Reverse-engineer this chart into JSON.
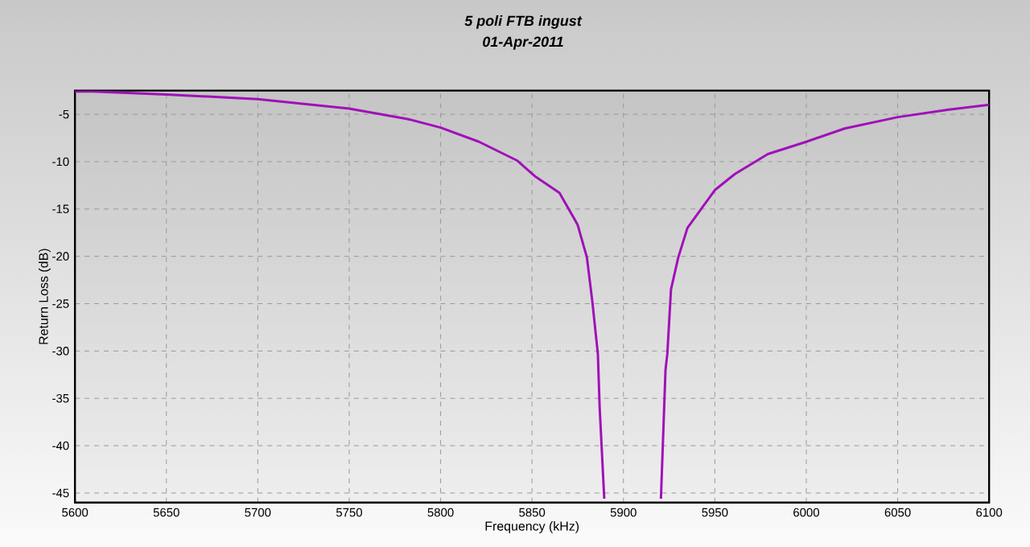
{
  "chart_data": {
    "type": "line",
    "title": "5 poli FTB ingust",
    "subtitle": "01-Apr-2011",
    "xlabel": "Frequency (kHz)",
    "ylabel": "Return Loss (dB)",
    "xlim": [
      5600,
      6100
    ],
    "ylim": [
      -46,
      -2.5
    ],
    "xticks": [
      5600,
      5650,
      5700,
      5750,
      5800,
      5850,
      5900,
      5950,
      6000,
      6050,
      6100
    ],
    "yticks": [
      -5,
      -10,
      -15,
      -20,
      -25,
      -30,
      -35,
      -40,
      -45
    ],
    "grid": true,
    "marker": "none",
    "line_style": "solid",
    "series": [
      {
        "color": "#a010b8",
        "x": [
          5600,
          5610,
          5650,
          5700,
          5750,
          5782,
          5800,
          5821,
          5842,
          5852,
          5865,
          5873,
          5875,
          5880,
          5883,
          5886,
          5887,
          5889.5
        ],
        "values": [
          -2.6,
          -2.6,
          -2.9,
          -3.4,
          -4.4,
          -5.5,
          -6.4,
          -7.9,
          -9.9,
          -11.6,
          -13.3,
          -16,
          -16.7,
          -20.1,
          -24.8,
          -30.3,
          -36,
          -45.6
        ]
      },
      {
        "color": "#a010b8",
        "x": [
          5920.5,
          5923,
          5924,
          5926,
          5930,
          5935,
          5950,
          5961,
          5979,
          6000,
          6021,
          6050,
          6078,
          6100
        ],
        "values": [
          -45.6,
          -32,
          -30.3,
          -23.5,
          -20.1,
          -17,
          -13,
          -11.3,
          -9.2,
          -7.9,
          -6.5,
          -5.3,
          -4.5,
          -4.0
        ]
      }
    ]
  }
}
